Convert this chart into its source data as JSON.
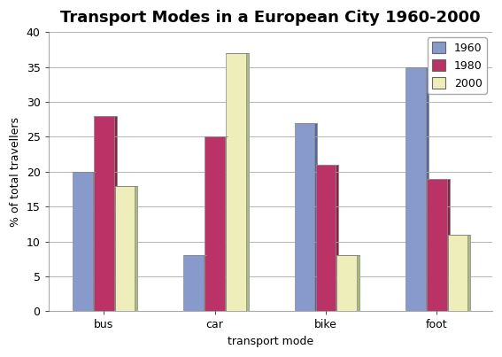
{
  "title": "Transport Modes in a European City 1960-2000",
  "categories": [
    "bus",
    "car",
    "bike",
    "foot"
  ],
  "xlabel": "transport mode",
  "ylabel": "% of total travellers",
  "years": [
    "1960",
    "1980",
    "2000"
  ],
  "values": {
    "1960": [
      20,
      8,
      27,
      35
    ],
    "1980": [
      28,
      25,
      21,
      19
    ],
    "2000": [
      18,
      37,
      8,
      11
    ]
  },
  "colors_front": {
    "1960": "#8899cc",
    "1980": "#bb3366",
    "2000": "#eeeebb"
  },
  "colors_side": {
    "1960": "#556699",
    "1980": "#882244",
    "2000": "#aabb77"
  },
  "ylim": [
    0,
    40
  ],
  "yticks": [
    0,
    5,
    10,
    15,
    20,
    25,
    30,
    35,
    40
  ],
  "background_color": "#ffffff",
  "plot_background": "#ffffff",
  "bar_width": 0.18,
  "depth": 0.04,
  "title_fontsize": 13,
  "axis_label_fontsize": 9,
  "legend_fontsize": 9,
  "grid_color": "#aaaaaa"
}
